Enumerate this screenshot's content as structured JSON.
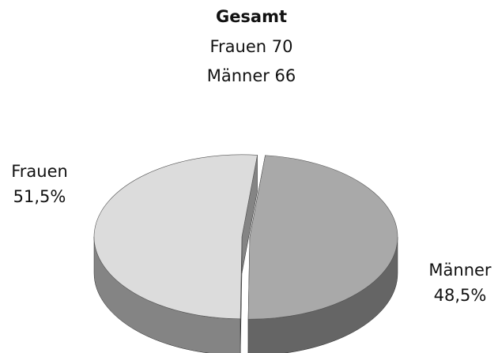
{
  "chart_data": {
    "type": "pie3d",
    "title": "Gesamt",
    "subtitle": [
      "Frauen 70",
      "Männer 66"
    ],
    "categories": [
      "Frauen",
      "Männer"
    ],
    "values": [
      51.5,
      48.5
    ],
    "value_labels": [
      "51,5%",
      "48,5%"
    ],
    "colors": [
      "#dcdcdc",
      "#a9a9a9"
    ]
  }
}
